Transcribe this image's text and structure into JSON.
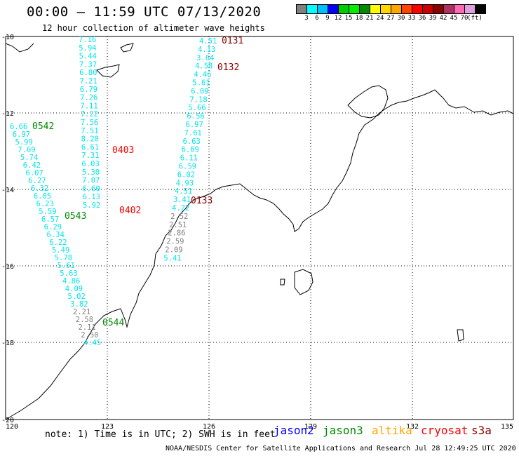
{
  "title": "00:00 – 11:59 UTC 07/13/2020",
  "subtitle": "12 hour collection of altimeter wave heights",
  "legend": {
    "colors": [
      "#808080",
      "#00ffff",
      "#00bfff",
      "#0000ff",
      "#00cd00",
      "#00ee00",
      "#008b00",
      "#ffff00",
      "#ffd700",
      "#ffa500",
      "#ff4500",
      "#ff0000",
      "#cd0000",
      "#8b0000",
      "#b03060",
      "#ff69b4",
      "#dda0dd",
      "#000000"
    ],
    "labels": [
      "3",
      "6",
      "9",
      "12",
      "15",
      "18",
      "21",
      "24",
      "27",
      "30",
      "33",
      "36",
      "39",
      "42",
      "45",
      "70",
      "(ft)"
    ]
  },
  "axes": {
    "lon_labels": [
      "120",
      "123",
      "126",
      "129",
      "132",
      "135"
    ],
    "lat_labels": [
      "-10",
      "-12",
      "-14",
      "-16",
      "-18",
      "-20"
    ]
  },
  "passes": [
    {
      "label": "0131",
      "color": "#8b0000"
    },
    {
      "label": "0132",
      "color": "#8b0000"
    },
    {
      "label": "0542",
      "color": "#008b00"
    },
    {
      "label": "0403",
      "color": "#ff0000"
    },
    {
      "label": "0402",
      "color": "#ff0000"
    },
    {
      "label": "0133",
      "color": "#8b0000"
    },
    {
      "label": "0543",
      "color": "#008b00"
    },
    {
      "label": "0544",
      "color": "#008b00"
    }
  ],
  "tracks": [
    {
      "name": "track-a",
      "values": [
        "7.16",
        "5.94",
        "5.44",
        "7.37",
        "6.80",
        "7.21",
        "6.79",
        "7.26",
        "7.11",
        "7.22",
        "7.56",
        "7.51",
        "8.20",
        "6.61",
        "7.31",
        "6.03",
        "5.30",
        "7.07",
        "6.60",
        "6.13",
        "5.92"
      ]
    },
    {
      "name": "track-b",
      "values": [
        "4.51",
        "4.13",
        "3.64",
        "4.58",
        "4.46",
        "5.61",
        "6.09",
        "7.18",
        "5.66",
        "6.56",
        "6.97",
        "7.61",
        "6.63",
        "6.69",
        "6.11",
        "6.59",
        "6.02",
        "4.93",
        "4.51",
        "3.41",
        "4.22",
        "2.52",
        "2.51",
        "2.86",
        "2.59",
        "2.09",
        "5.41"
      ]
    },
    {
      "name": "track-c",
      "values": [
        "6.66",
        "6.97",
        "5.99",
        "7.69",
        "5.74",
        "6.42",
        "6.07",
        "6.27",
        "6.32",
        "6.05",
        "6.23",
        "5.59",
        "6.57",
        "6.29",
        "6.34",
        "6.22",
        "5.49",
        "5.78",
        "5.61",
        "5.63",
        "4.86",
        "4.09",
        "5.02",
        "3.82",
        "2.21",
        "2.58",
        "2.11",
        "2.50",
        "4.45"
      ]
    }
  ],
  "note": "note: 1) Time is in UTC; 2) SWH is in feet",
  "satellites": [
    {
      "name": "jason2",
      "color": "#0000ff"
    },
    {
      "name": "jason3",
      "color": "#008b00"
    },
    {
      "name": "altika",
      "color": "#ffa500"
    },
    {
      "name": "cryosat",
      "color": "#ff0000"
    },
    {
      "name": "s3a",
      "color": "#8b0000"
    }
  ],
  "footer": "NOAA/NESDIS Center for Satellite Applications and Research   Jul 28 12:49:25 UTC 2020"
}
